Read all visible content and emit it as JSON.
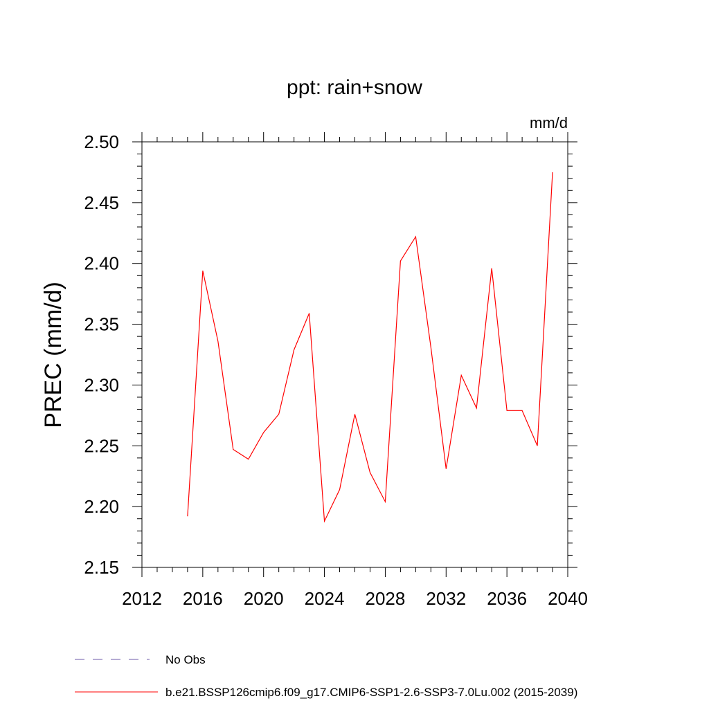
{
  "chart_data": {
    "type": "line",
    "title": "ppt: rain+snow",
    "units_label": "mm/d",
    "xlabel": "",
    "ylabel": "PREC  (mm/d)",
    "xlim": [
      2012,
      2040
    ],
    "ylim": [
      2.15,
      2.5
    ],
    "x_ticks": [
      2012,
      2016,
      2020,
      2024,
      2028,
      2032,
      2036,
      2040
    ],
    "y_ticks": [
      "2.15",
      "2.20",
      "2.25",
      "2.30",
      "2.35",
      "2.40",
      "2.45",
      "2.50"
    ],
    "grid": false,
    "legend_position": "bottom",
    "series": [
      {
        "name": "b.e21.BSSP126cmip6.f09_g17.CMIP6-SSP1-2.6-SSP3-7.0Lu.002 (2015-2039)",
        "color": "#ff0000",
        "style": "solid",
        "x": [
          2015,
          2016,
          2017,
          2018,
          2019,
          2020,
          2021,
          2022,
          2023,
          2024,
          2025,
          2026,
          2027,
          2028,
          2029,
          2030,
          2031,
          2032,
          2033,
          2034,
          2035,
          2036,
          2037,
          2038,
          2039
        ],
        "values": [
          2.192,
          2.394,
          2.336,
          2.247,
          2.239,
          2.261,
          2.276,
          2.329,
          2.359,
          2.188,
          2.214,
          2.276,
          2.228,
          2.204,
          2.402,
          2.422,
          2.331,
          2.231,
          2.308,
          2.281,
          2.396,
          2.279,
          2.279,
          2.25,
          2.475
        ]
      }
    ],
    "legend": [
      {
        "label": "No Obs",
        "color": "#6e5aa8",
        "style": "dashed"
      },
      {
        "label": "b.e21.BSSP126cmip6.f09_g17.CMIP6-SSP1-2.6-SSP3-7.0Lu.002 (2015-2039)",
        "color": "#ff0000",
        "style": "solid"
      }
    ]
  }
}
